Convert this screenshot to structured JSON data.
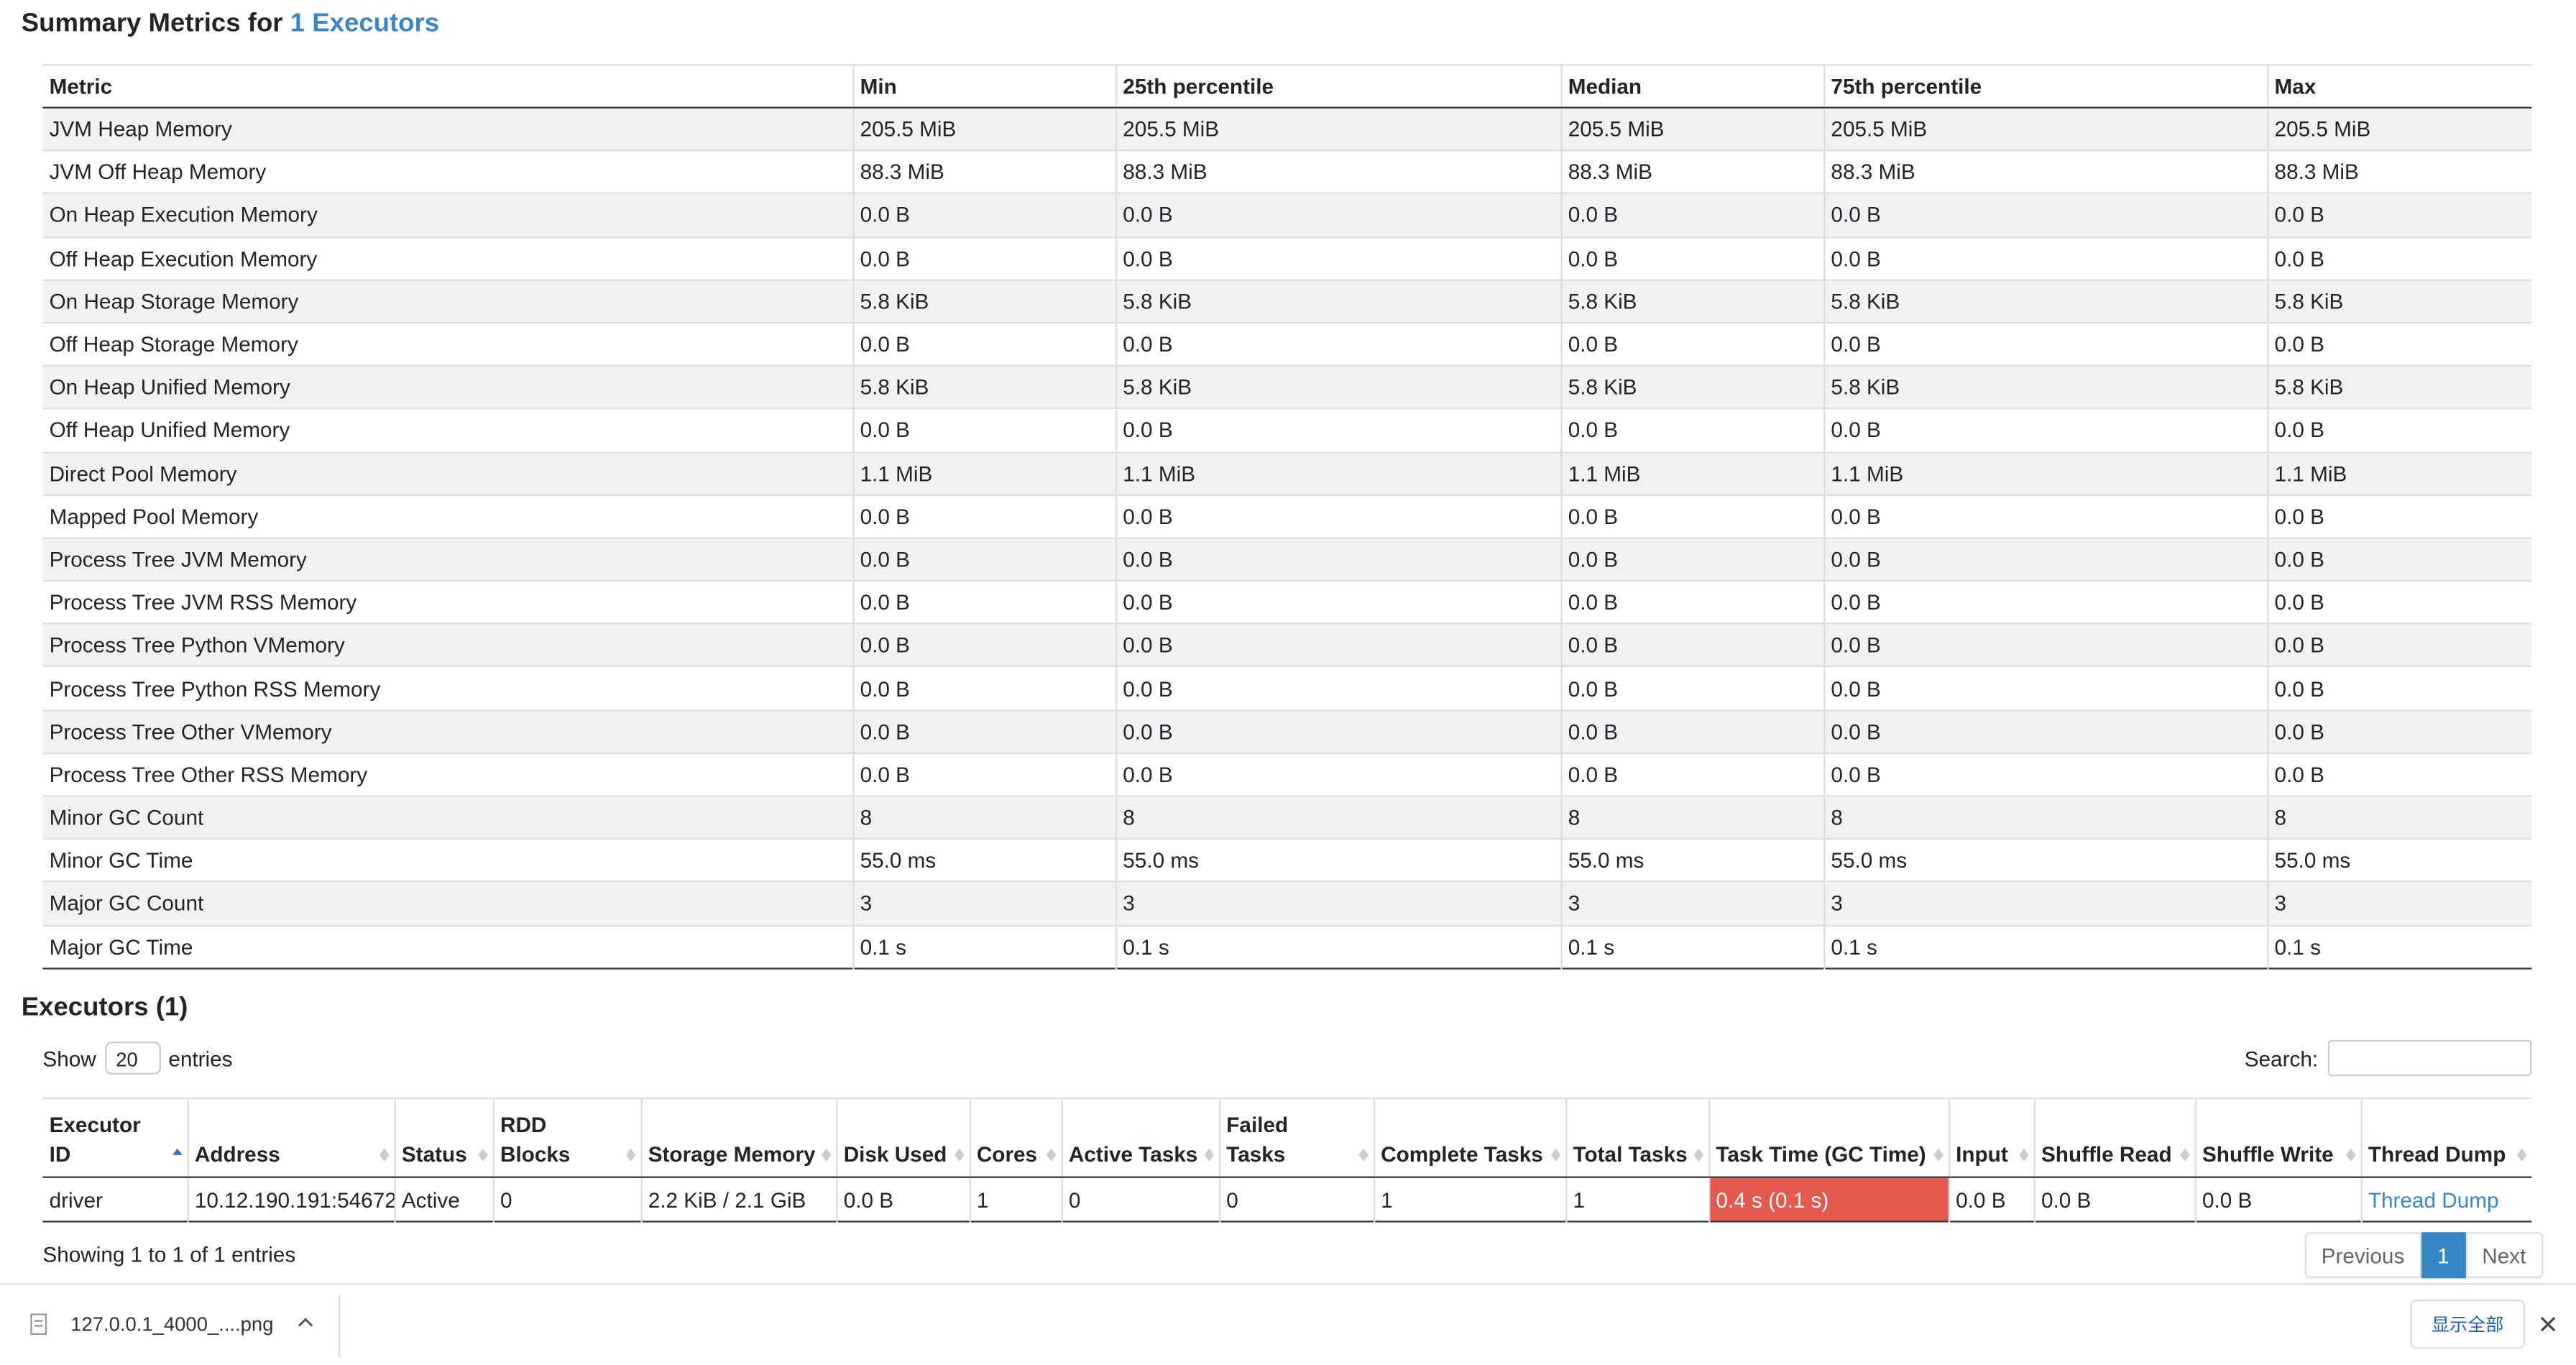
{
  "summary": {
    "title": "Summary Metrics for",
    "link": "1 Executors",
    "columns": [
      "Metric",
      "Min",
      "25th percentile",
      "Median",
      "75th percentile",
      "Max"
    ],
    "rows": [
      [
        "JVM Heap Memory",
        "205.5 MiB",
        "205.5 MiB",
        "205.5 MiB",
        "205.5 MiB",
        "205.5 MiB"
      ],
      [
        "JVM Off Heap Memory",
        "88.3 MiB",
        "88.3 MiB",
        "88.3 MiB",
        "88.3 MiB",
        "88.3 MiB"
      ],
      [
        "On Heap Execution Memory",
        "0.0 B",
        "0.0 B",
        "0.0 B",
        "0.0 B",
        "0.0 B"
      ],
      [
        "Off Heap Execution Memory",
        "0.0 B",
        "0.0 B",
        "0.0 B",
        "0.0 B",
        "0.0 B"
      ],
      [
        "On Heap Storage Memory",
        "5.8 KiB",
        "5.8 KiB",
        "5.8 KiB",
        "5.8 KiB",
        "5.8 KiB"
      ],
      [
        "Off Heap Storage Memory",
        "0.0 B",
        "0.0 B",
        "0.0 B",
        "0.0 B",
        "0.0 B"
      ],
      [
        "On Heap Unified Memory",
        "5.8 KiB",
        "5.8 KiB",
        "5.8 KiB",
        "5.8 KiB",
        "5.8 KiB"
      ],
      [
        "Off Heap Unified Memory",
        "0.0 B",
        "0.0 B",
        "0.0 B",
        "0.0 B",
        "0.0 B"
      ],
      [
        "Direct Pool Memory",
        "1.1 MiB",
        "1.1 MiB",
        "1.1 MiB",
        "1.1 MiB",
        "1.1 MiB"
      ],
      [
        "Mapped Pool Memory",
        "0.0 B",
        "0.0 B",
        "0.0 B",
        "0.0 B",
        "0.0 B"
      ],
      [
        "Process Tree JVM Memory",
        "0.0 B",
        "0.0 B",
        "0.0 B",
        "0.0 B",
        "0.0 B"
      ],
      [
        "Process Tree JVM RSS Memory",
        "0.0 B",
        "0.0 B",
        "0.0 B",
        "0.0 B",
        "0.0 B"
      ],
      [
        "Process Tree Python VMemory",
        "0.0 B",
        "0.0 B",
        "0.0 B",
        "0.0 B",
        "0.0 B"
      ],
      [
        "Process Tree Python RSS Memory",
        "0.0 B",
        "0.0 B",
        "0.0 B",
        "0.0 B",
        "0.0 B"
      ],
      [
        "Process Tree Other VMemory",
        "0.0 B",
        "0.0 B",
        "0.0 B",
        "0.0 B",
        "0.0 B"
      ],
      [
        "Process Tree Other RSS Memory",
        "0.0 B",
        "0.0 B",
        "0.0 B",
        "0.0 B",
        "0.0 B"
      ],
      [
        "Minor GC Count",
        "8",
        "8",
        "8",
        "8",
        "8"
      ],
      [
        "Minor GC Time",
        "55.0 ms",
        "55.0 ms",
        "55.0 ms",
        "55.0 ms",
        "55.0 ms"
      ],
      [
        "Major GC Count",
        "3",
        "3",
        "3",
        "3",
        "3"
      ],
      [
        "Major GC Time",
        "0.1 s",
        "0.1 s",
        "0.1 s",
        "0.1 s",
        "0.1 s"
      ]
    ]
  },
  "executors": {
    "title": "Executors (1)",
    "show_label": "Show",
    "page_length": "20",
    "entries_label": "entries",
    "search_label": "Search:",
    "columns": [
      "Executor ID",
      "Address",
      "Status",
      "RDD Blocks",
      "Storage Memory",
      "Disk Used",
      "Cores",
      "Active Tasks",
      "Failed Tasks",
      "Complete Tasks",
      "Total Tasks",
      "Task Time (GC Time)",
      "Input",
      "Shuffle Read",
      "Shuffle Write",
      "Thread Dump"
    ],
    "rows": [
      [
        "driver",
        "10.12.190.191:54672",
        "Active",
        "0",
        "2.2 KiB / 2.1 GiB",
        "0.0 B",
        "1",
        "0",
        "0",
        "1",
        "1",
        "0.4 s (0.1 s)",
        "0.0 B",
        "0.0 B",
        "0.0 B",
        "Thread Dump"
      ]
    ],
    "info": "Showing 1 to 1 of 1 entries",
    "pagination": [
      "Previous",
      "1",
      "Next"
    ]
  },
  "download_bar": {
    "file": "127.0.0.1_4000_....png",
    "show_all": "显示全部"
  }
}
